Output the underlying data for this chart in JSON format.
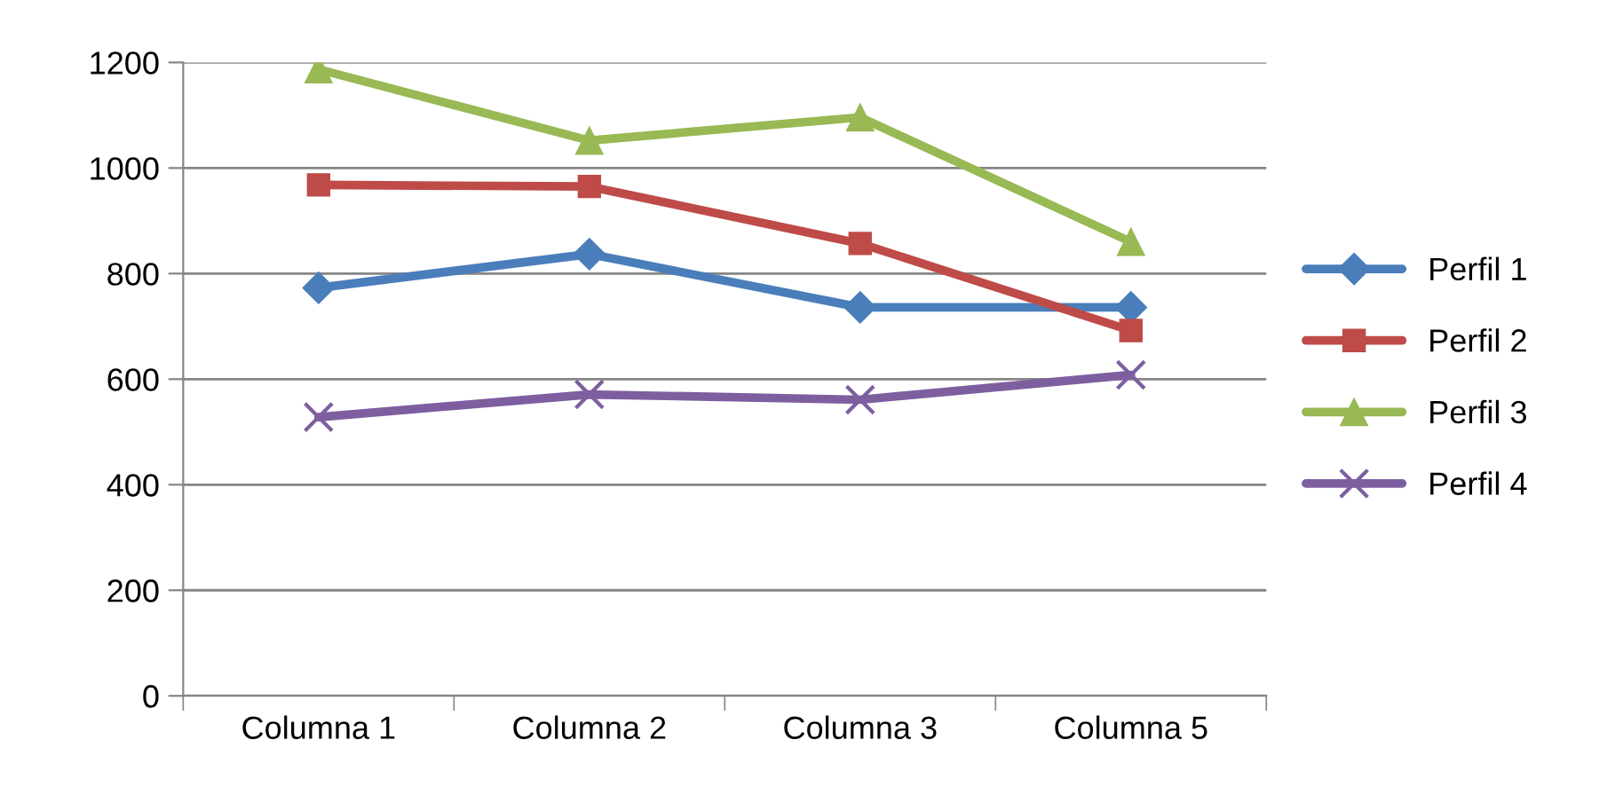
{
  "chart_data": {
    "type": "line",
    "categories": [
      "Columna 1",
      "Columna 2",
      "Columna 3",
      "Columna 5"
    ],
    "series": [
      {
        "name": "Perfil 1",
        "color": "#4a7ebb",
        "marker": "diamond",
        "values": [
          773,
          837,
          736,
          736
        ]
      },
      {
        "name": "Perfil 2",
        "color": "#be4b48",
        "marker": "square",
        "values": [
          968,
          965,
          857,
          692
        ]
      },
      {
        "name": "Perfil 3",
        "color": "#98b954",
        "marker": "triangle",
        "values": [
          1187,
          1052,
          1096,
          860
        ]
      },
      {
        "name": "Perfil 4",
        "color": "#7d5fa0",
        "marker": "cross",
        "values": [
          528,
          571,
          561,
          608
        ]
      }
    ],
    "ylim": [
      0,
      1200
    ],
    "yticks": [
      0,
      200,
      400,
      600,
      800,
      1000,
      1200
    ],
    "grid": "y",
    "legend": "right",
    "line_style": "solid"
  }
}
